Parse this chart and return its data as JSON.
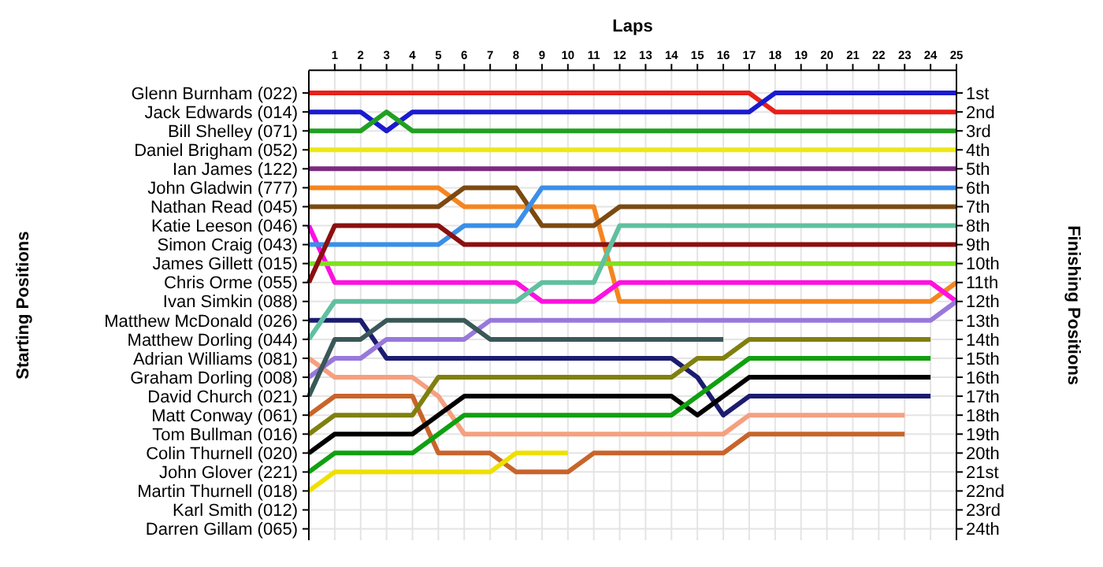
{
  "chart_data": {
    "type": "line",
    "title": "Laps",
    "ylabel": "Finishing Positions",
    "grid": true,
    "line_style": "solid",
    "x": [
      0,
      1,
      2,
      3,
      4,
      5,
      6,
      7,
      8,
      9,
      10,
      11,
      12,
      13,
      14,
      15,
      16,
      17,
      18,
      19,
      20,
      21,
      22,
      23,
      24,
      25
    ],
    "xlim": [
      0,
      25
    ],
    "xticks": [
      1,
      2,
      3,
      4,
      5,
      6,
      7,
      8,
      9,
      10,
      11,
      12,
      13,
      14,
      15,
      16,
      17,
      18,
      19,
      20,
      21,
      22,
      23,
      24,
      25
    ],
    "ylim": [
      24.6,
      -0.2
    ],
    "yticks": [
      {
        "value": 1,
        "label": "1st"
      },
      {
        "value": 2,
        "label": "2nd"
      },
      {
        "value": 3,
        "label": "3rd"
      },
      {
        "value": 4,
        "label": "4th"
      },
      {
        "value": 5,
        "label": "5th"
      },
      {
        "value": 6,
        "label": "6th"
      },
      {
        "value": 7,
        "label": "7th"
      },
      {
        "value": 8,
        "label": "8th"
      },
      {
        "value": 9,
        "label": "9th"
      },
      {
        "value": 10,
        "label": "10th"
      },
      {
        "value": 11,
        "label": "11th"
      },
      {
        "value": 12,
        "label": "12th"
      },
      {
        "value": 13,
        "label": "13th"
      },
      {
        "value": 14,
        "label": "14th"
      },
      {
        "value": 15,
        "label": "15th"
      },
      {
        "value": 16,
        "label": "16th"
      },
      {
        "value": 17,
        "label": "17th"
      },
      {
        "value": 18,
        "label": "18th"
      },
      {
        "value": 19,
        "label": "19th"
      },
      {
        "value": 20,
        "label": "20th"
      },
      {
        "value": 21,
        "label": "21st"
      },
      {
        "value": 22,
        "label": "22nd"
      },
      {
        "value": 23,
        "label": "23rd"
      },
      {
        "value": 24,
        "label": "24th"
      }
    ],
    "annotations": [
      "Glenn Burnham (022)",
      "Jack Edwards (014)",
      "Bill Shelley (071)",
      "Daniel Brigham (052)",
      "Ian James (122)",
      "John Gladwin (777)",
      "Nathan Read (045)",
      "Katie Leeson (046)",
      "Simon Craig (043)",
      "James Gillett (015)",
      "Chris Orme (055)",
      "Ivan Simkin (088)",
      "Matthew McDonald (026)",
      "Matthew Dorling (044)",
      "Adrian Williams (081)",
      "Graham Dorling (008)",
      "David Church (021)",
      "Matt Conway (061)",
      "Tom Bullman (016)",
      "Colin Thurnell (020)",
      "John Glover (221)",
      "Martin Thurnell (018)",
      "Karl Smith (012)",
      "Darren Gillam (065)",
      "Starting Positions"
    ],
    "series": [
      {
        "color": "#e8201a",
        "values": [
          1,
          1,
          1,
          1,
          1,
          1,
          1,
          1,
          1,
          1,
          1,
          1,
          1,
          1,
          1,
          1,
          1,
          1,
          2,
          2,
          2,
          2,
          2,
          2,
          2,
          2
        ]
      },
      {
        "color": "#1a1ad0",
        "values": [
          2,
          2,
          2,
          3,
          2,
          2,
          2,
          2,
          2,
          2,
          2,
          2,
          2,
          2,
          2,
          2,
          2,
          2,
          1,
          1,
          1,
          1,
          1,
          1,
          1,
          1
        ]
      },
      {
        "color": "#21a021",
        "values": [
          3,
          3,
          3,
          2,
          3,
          3,
          3,
          3,
          3,
          3,
          3,
          3,
          3,
          3,
          3,
          3,
          3,
          3,
          3,
          3,
          3,
          3,
          3,
          3,
          3,
          3
        ]
      },
      {
        "color": "#ece81a",
        "values": [
          4,
          4,
          4,
          4,
          4,
          4,
          4,
          4,
          4,
          4,
          4,
          4,
          4,
          4,
          4,
          4,
          4,
          4,
          4,
          4,
          4,
          4,
          4,
          4,
          4,
          4
        ]
      },
      {
        "color": "#7b2a80",
        "values": [
          5,
          5,
          5,
          5,
          5,
          5,
          5,
          5,
          5,
          5,
          5,
          5,
          5,
          5,
          5,
          5,
          5,
          5,
          5,
          5,
          5,
          5,
          5,
          5,
          5,
          5
        ]
      },
      {
        "color": "#f5851f",
        "values": [
          6,
          6,
          6,
          6,
          6,
          6,
          7,
          7,
          7,
          7,
          7,
          7,
          12,
          12,
          12,
          12,
          12,
          12,
          12,
          12,
          12,
          12,
          12,
          12,
          12,
          11
        ]
      },
      {
        "color": "#7b4a12",
        "values": [
          7,
          7,
          7,
          7,
          7,
          7,
          6,
          6,
          6,
          8,
          8,
          8,
          7,
          7,
          7,
          7,
          7,
          7,
          7,
          7,
          7,
          7,
          7,
          7,
          7,
          7
        ]
      },
      {
        "color": "#ff10e0",
        "values": [
          8,
          11,
          11,
          11,
          11,
          11,
          11,
          11,
          11,
          12,
          12,
          12,
          11,
          11,
          11,
          11,
          11,
          11,
          11,
          11,
          11,
          11,
          11,
          11,
          11,
          12
        ]
      },
      {
        "color": "#3a8fe8",
        "values": [
          9,
          9,
          9,
          9,
          9,
          9,
          8,
          8,
          8,
          6,
          6,
          6,
          6,
          6,
          6,
          6,
          6,
          6,
          6,
          6,
          6,
          6,
          6,
          6,
          6,
          6
        ]
      },
      {
        "color": "#80e020",
        "values": [
          10,
          10,
          10,
          10,
          10,
          10,
          10,
          10,
          10,
          10,
          10,
          10,
          10,
          10,
          10,
          10,
          10,
          10,
          10,
          10,
          10,
          10,
          10,
          10,
          10,
          10
        ]
      },
      {
        "color": "#8b1010",
        "values": [
          11,
          8,
          8,
          8,
          8,
          8,
          9,
          9,
          9,
          9,
          9,
          9,
          9,
          9,
          9,
          9,
          9,
          9,
          9,
          9,
          9,
          9,
          9,
          9,
          9,
          9
        ]
      },
      {
        "color": "#1c1c70",
        "values": [
          13,
          13,
          13,
          15,
          15,
          15,
          15,
          15,
          15,
          15,
          15,
          15,
          15,
          15,
          15,
          16,
          18,
          17,
          17,
          17,
          17,
          17,
          17,
          17,
          17,
          null
        ]
      },
      {
        "color": "#60c0a0",
        "values": [
          14,
          12,
          12,
          12,
          12,
          12,
          12,
          12,
          12,
          11,
          11,
          11,
          8,
          8,
          8,
          8,
          8,
          8,
          8,
          8,
          8,
          8,
          8,
          8,
          8,
          8
        ]
      },
      {
        "color": "#f5a080",
        "values": [
          15,
          16,
          16,
          16,
          16,
          17,
          19,
          19,
          19,
          19,
          19,
          19,
          19,
          19,
          19,
          19,
          19,
          18,
          18,
          18,
          18,
          18,
          18,
          18,
          null,
          null
        ]
      },
      {
        "color": "#9878dc",
        "values": [
          16,
          15,
          15,
          14,
          14,
          14,
          14,
          13,
          13,
          13,
          13,
          13,
          13,
          13,
          13,
          13,
          13,
          13,
          13,
          13,
          13,
          13,
          13,
          13,
          13,
          12
        ]
      },
      {
        "color": "#3a5858",
        "values": [
          17,
          14,
          14,
          13,
          13,
          13,
          13,
          14,
          14,
          14,
          14,
          14,
          14,
          14,
          14,
          14,
          14,
          null,
          null,
          null,
          null,
          null,
          null,
          null,
          null,
          null
        ]
      },
      {
        "color": "#c8642a",
        "values": [
          18,
          17,
          17,
          17,
          17,
          20,
          20,
          20,
          21,
          21,
          21,
          20,
          20,
          20,
          20,
          20,
          20,
          19,
          19,
          19,
          19,
          19,
          19,
          19,
          null,
          null
        ]
      },
      {
        "color": "#808010",
        "values": [
          19,
          18,
          18,
          18,
          18,
          16,
          16,
          16,
          16,
          16,
          16,
          16,
          16,
          16,
          16,
          15,
          15,
          14,
          14,
          14,
          14,
          14,
          14,
          14,
          14,
          null
        ]
      },
      {
        "color": "#000000",
        "values": [
          20,
          19,
          19,
          19,
          19,
          18,
          17,
          17,
          17,
          17,
          17,
          17,
          17,
          17,
          17,
          18,
          17,
          16,
          16,
          16,
          16,
          16,
          16,
          16,
          16,
          null
        ]
      },
      {
        "color": "#10a010",
        "values": [
          21,
          20,
          20,
          20,
          20,
          19,
          18,
          18,
          18,
          18,
          18,
          18,
          18,
          18,
          18,
          17,
          16,
          15,
          15,
          15,
          15,
          15,
          15,
          15,
          15,
          null
        ]
      },
      {
        "color": "#f0e000",
        "values": [
          22,
          21,
          21,
          21,
          21,
          21,
          21,
          21,
          20,
          20,
          20,
          null,
          null,
          null,
          null,
          null,
          null,
          null,
          null,
          null,
          null,
          null,
          null,
          null,
          null,
          null
        ]
      }
    ]
  }
}
